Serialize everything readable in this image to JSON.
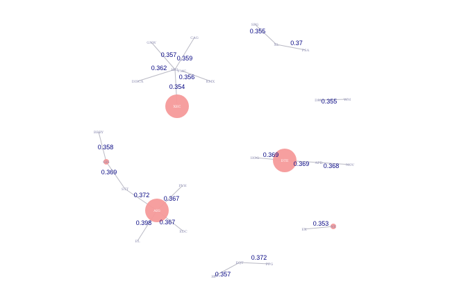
{
  "graph": {
    "node_color": "#f59a9a",
    "edge_color": "#b9b9c4",
    "weight_color": "#000080",
    "label_color": "#8a8ab0",
    "nodes": [
      {
        "id": "n_xec",
        "label": "XEC",
        "size": "large"
      },
      {
        "id": "n_cag",
        "label": "CAG",
        "size": "small"
      },
      {
        "id": "n_gnw",
        "label": "GNW",
        "size": "small"
      },
      {
        "id": "n_hub1",
        "label": "HRL",
        "size": "small"
      },
      {
        "id": "n_hub2",
        "label": "FMC",
        "size": "small"
      },
      {
        "id": "n_disca",
        "label": "DISCA",
        "size": "small"
      },
      {
        "id": "n_kmx",
        "label": "KMX",
        "size": "small"
      },
      {
        "id": "n_spg",
        "label": "SPG",
        "size": "small"
      },
      {
        "id": "n_xl",
        "label": "XL",
        "size": "small"
      },
      {
        "id": "n_psa",
        "label": "PSA",
        "size": "small"
      },
      {
        "id": "n_dri",
        "label": "DRI",
        "size": "small"
      },
      {
        "id": "n_wm",
        "label": "WM",
        "size": "small"
      },
      {
        "id": "n_bbby",
        "label": "BBBY",
        "size": "small"
      },
      {
        "id": "n_gis",
        "label": "GIS",
        "size": "medium"
      },
      {
        "id": "n_stt",
        "label": "STT",
        "size": "small"
      },
      {
        "id": "n_aig",
        "label": "AIG",
        "size": "large"
      },
      {
        "id": "n_pvh",
        "label": "PVH",
        "size": "small"
      },
      {
        "id": "n_el",
        "label": "EL",
        "size": "small"
      },
      {
        "id": "n_edc",
        "label": "EDC",
        "size": "small"
      },
      {
        "id": "n_hog",
        "label": "HOG",
        "size": "small"
      },
      {
        "id": "n_dte",
        "label": "DTE",
        "size": "large"
      },
      {
        "id": "n_apd",
        "label": "APD",
        "size": "small"
      },
      {
        "id": "n_nov",
        "label": "NOV",
        "size": "small"
      },
      {
        "id": "n_ex",
        "label": "EX",
        "size": "small"
      },
      {
        "id": "n_ne",
        "label": "NE",
        "size": "medium"
      },
      {
        "id": "n_eqt",
        "label": "EQT",
        "size": "small"
      },
      {
        "id": "n_ppg",
        "label": "PPG",
        "size": "small"
      },
      {
        "id": "n_rf",
        "label": "RF",
        "size": "small"
      }
    ],
    "edges": [
      {
        "source": "n_xec",
        "target": "n_hub1",
        "weight": "0.354"
      },
      {
        "source": "n_hub1",
        "target": "n_cag",
        "weight": "0.359"
      },
      {
        "source": "n_hub1",
        "target": "n_gnw",
        "weight": "0.357"
      },
      {
        "source": "n_hub1",
        "target": "n_disca",
        "weight": "0.362"
      },
      {
        "source": "n_hub2",
        "target": "n_kmx",
        "weight": "0.356"
      },
      {
        "source": "n_spg",
        "target": "n_xl",
        "weight": "0.355"
      },
      {
        "source": "n_xl",
        "target": "n_psa",
        "weight": "0.37"
      },
      {
        "source": "n_dri",
        "target": "n_wm",
        "weight": "0.355"
      },
      {
        "source": "n_bbby",
        "target": "n_gis",
        "weight": "0.358"
      },
      {
        "source": "n_gis",
        "target": "n_stt",
        "weight": "0.369"
      },
      {
        "source": "n_stt",
        "target": "n_aig",
        "weight": "0.372"
      },
      {
        "source": "n_aig",
        "target": "n_pvh",
        "weight": "0.367"
      },
      {
        "source": "n_aig",
        "target": "n_el",
        "weight": "0.398"
      },
      {
        "source": "n_aig",
        "target": "n_edc",
        "weight": "0.367"
      },
      {
        "source": "n_hog",
        "target": "n_dte",
        "weight": "0.369"
      },
      {
        "source": "n_dte",
        "target": "n_apd",
        "weight": "0.369"
      },
      {
        "source": "n_apd",
        "target": "n_nov",
        "weight": "0.368"
      },
      {
        "source": "n_ex",
        "target": "n_ne",
        "weight": "0.353"
      },
      {
        "source": "n_eqt",
        "target": "n_ppg",
        "weight": "0.372"
      },
      {
        "source": "n_eqt",
        "target": "n_rf",
        "weight": "0.357"
      }
    ]
  }
}
